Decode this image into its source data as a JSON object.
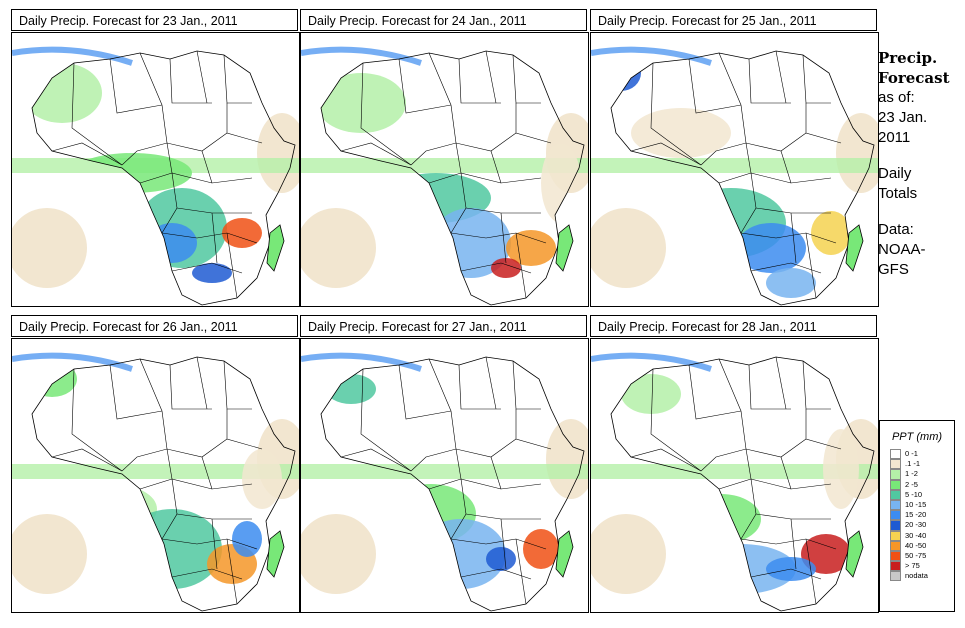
{
  "panels": [
    {
      "title": "Daily Precip. Forecast for  23 Jan., 2011"
    },
    {
      "title": "Daily Precip. Forecast for  24 Jan., 2011"
    },
    {
      "title": "Daily Precip. Forecast for  25 Jan., 2011"
    },
    {
      "title": "Daily Precip. Forecast for  26 Jan., 2011"
    },
    {
      "title": "Daily Precip. Forecast for  27 Jan., 2011"
    },
    {
      "title": "Daily Precip. Forecast for  28 Jan., 2011"
    }
  ],
  "sidebar": {
    "heading1": "Precip.",
    "heading2": "Forecast",
    "asof": "as of:",
    "date1": "23 Jan.",
    "date2": "2011",
    "daily": "Daily",
    "totals": "Totals",
    "data_label": "Data:",
    "source1": "NOAA-",
    "source2": "GFS"
  },
  "legend": {
    "title": "PPT (mm)",
    "items": [
      {
        "label": "0 -1",
        "color": "#ffffff"
      },
      {
        "label": ".1 -1",
        "color": "#f2e6d0"
      },
      {
        "label": "1 -2",
        "color": "#b4f0a8"
      },
      {
        "label": "2 -5",
        "color": "#78e878"
      },
      {
        "label": "5 -10",
        "color": "#50c8a0"
      },
      {
        "label": "10 -15",
        "color": "#78b4f0"
      },
      {
        "label": "15 -20",
        "color": "#3c8cf0"
      },
      {
        "label": "20 -30",
        "color": "#1e5ad2"
      },
      {
        "label": "30 -40",
        "color": "#f5d250"
      },
      {
        "label": "40 -50",
        "color": "#f59628"
      },
      {
        "label": "50 -75",
        "color": "#f05014"
      },
      {
        "label": "> 75",
        "color": "#c81e1e"
      },
      {
        "label": "nodata",
        "color": "#c8c8c8"
      }
    ]
  }
}
